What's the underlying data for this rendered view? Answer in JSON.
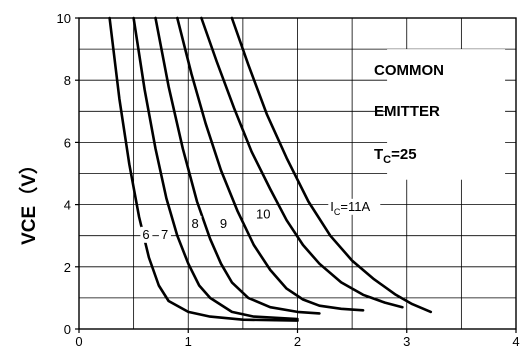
{
  "chart_data": {
    "type": "line",
    "title": "",
    "xlabel": "",
    "ylabel": "VCE（V）",
    "xlim": [
      0,
      4
    ],
    "ylim": [
      0,
      10
    ],
    "grid": true,
    "x_ticks": [
      "0",
      "1",
      "2",
      "3",
      "4"
    ],
    "y_ticks": [
      "0",
      "2",
      "4",
      "6",
      "8",
      "10"
    ],
    "annotations": {
      "line1": "COMMON",
      "line2": "EMITTER",
      "line3_main": "T",
      "line3_sub": "C",
      "line3_rest": "=25"
    },
    "series": [
      {
        "name": "6",
        "x": [
          0.28,
          0.37,
          0.46,
          0.55,
          0.64,
          0.73,
          0.82,
          1.0,
          1.2,
          1.5,
          2.0
        ],
        "y": [
          10.0,
          7.4,
          5.3,
          3.6,
          2.3,
          1.4,
          0.9,
          0.55,
          0.4,
          0.3,
          0.27
        ]
      },
      {
        "name": "7",
        "x": [
          0.5,
          0.6,
          0.7,
          0.8,
          0.9,
          1.0,
          1.1,
          1.2,
          1.4,
          1.6,
          2.0
        ],
        "y": [
          10.0,
          7.7,
          5.8,
          4.2,
          3.0,
          2.1,
          1.4,
          1.0,
          0.55,
          0.4,
          0.32
        ]
      },
      {
        "name": "8",
        "x": [
          0.7,
          0.82,
          0.95,
          1.08,
          1.2,
          1.3,
          1.4,
          1.55,
          1.75,
          2.0,
          2.2
        ],
        "y": [
          10.0,
          7.8,
          5.8,
          4.1,
          2.9,
          2.1,
          1.5,
          1.0,
          0.7,
          0.55,
          0.5
        ]
      },
      {
        "name": "9",
        "x": [
          0.9,
          1.03,
          1.16,
          1.3,
          1.45,
          1.6,
          1.75,
          1.9,
          2.05,
          2.2,
          2.4,
          2.6
        ],
        "y": [
          10.0,
          8.2,
          6.6,
          5.1,
          3.8,
          2.7,
          1.9,
          1.3,
          0.95,
          0.75,
          0.65,
          0.6
        ]
      },
      {
        "name": "10",
        "x": [
          1.12,
          1.26,
          1.42,
          1.58,
          1.75,
          1.9,
          2.05,
          2.2,
          2.4,
          2.6,
          2.8,
          2.96
        ],
        "y": [
          10.0,
          8.6,
          7.1,
          5.7,
          4.5,
          3.5,
          2.7,
          2.1,
          1.5,
          1.1,
          0.85,
          0.7
        ]
      },
      {
        "name": "I_C=11A",
        "x": [
          1.4,
          1.55,
          1.72,
          1.9,
          2.1,
          2.3,
          2.5,
          2.7,
          2.9,
          3.05,
          3.22
        ],
        "y": [
          10.0,
          8.5,
          6.9,
          5.5,
          4.1,
          3.0,
          2.2,
          1.6,
          1.1,
          0.8,
          0.55
        ]
      }
    ],
    "curve_labels": [
      {
        "text": "6",
        "x": 0.58,
        "y": 2.9
      },
      {
        "text": "7",
        "x": 0.75,
        "y": 2.9
      },
      {
        "text": "8",
        "x": 1.03,
        "y": 3.25
      },
      {
        "text": "9",
        "x": 1.29,
        "y": 3.25
      },
      {
        "text": "10",
        "x": 1.62,
        "y": 3.55
      },
      {
        "text": "I",
        "sub": "C",
        "rest": "=11A",
        "x": 2.3,
        "y": 3.8
      }
    ]
  }
}
